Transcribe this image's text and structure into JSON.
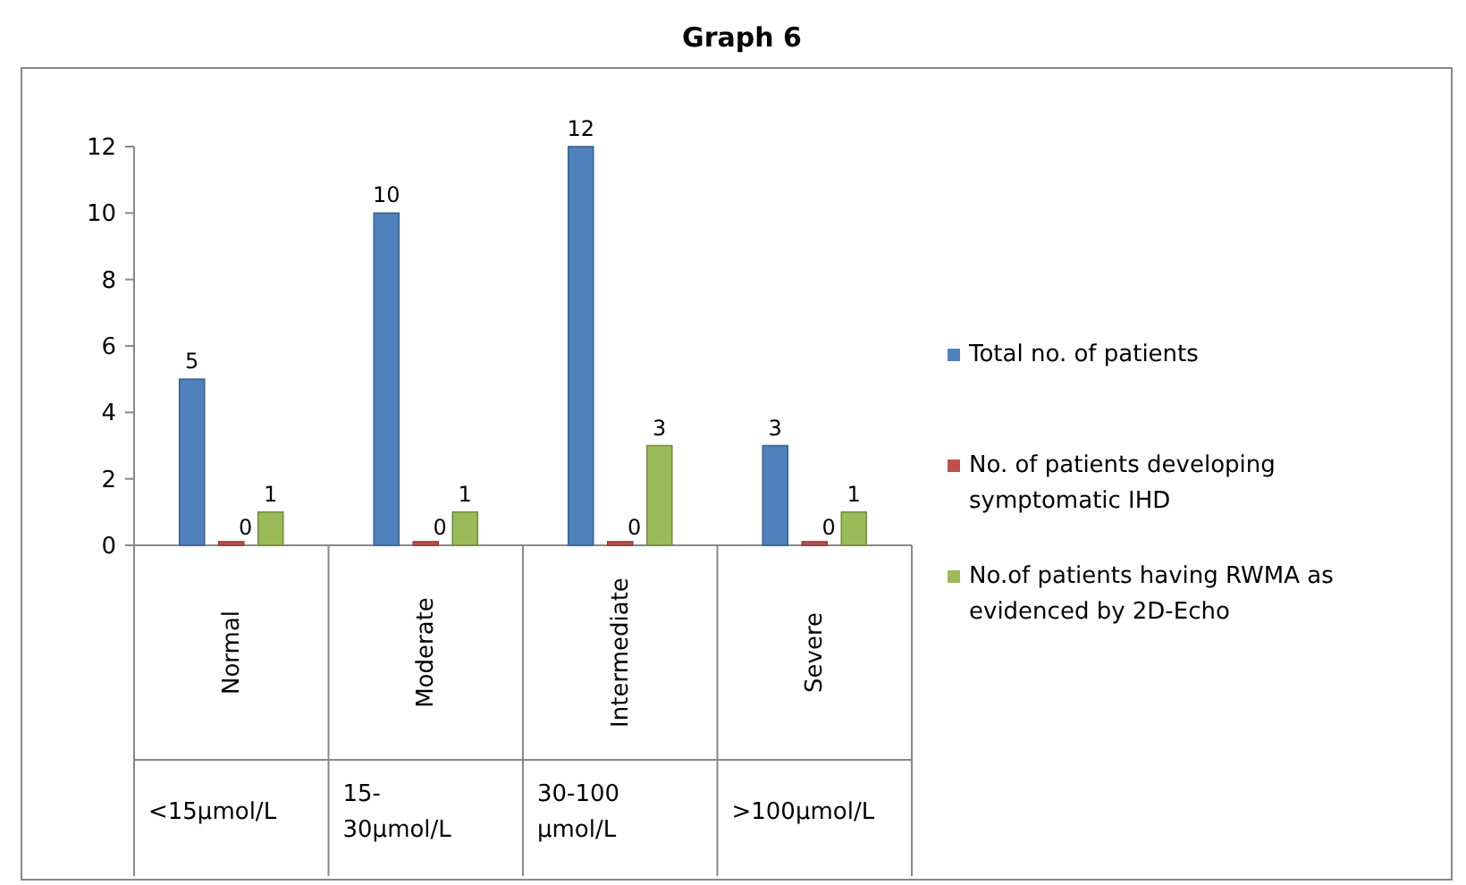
{
  "chart_data": {
    "type": "bar",
    "title": "Graph 6",
    "categories": [
      "Normal",
      "Moderate",
      "Intermediate",
      "Severe"
    ],
    "series": [
      {
        "name": "Total no. of patients",
        "color": "#4f81bd",
        "values": [
          5,
          10,
          12,
          3
        ]
      },
      {
        "name": "No. of patients developing symptomatic IHD",
        "color": "#c0504d",
        "values": [
          0,
          0,
          0,
          0
        ]
      },
      {
        "name": "No.of patients having RWMA as evidenced by 2D-Echo",
        "color": "#9bbb59",
        "values": [
          1,
          1,
          3,
          1
        ]
      }
    ],
    "annotations": [
      "<15µmol/L",
      "15-30µmol/L",
      "30-100 µmol/L",
      ">100µmol/L"
    ],
    "ylim": [
      0,
      12
    ],
    "yticks": [
      0,
      2,
      4,
      6,
      8,
      10,
      12
    ],
    "data_labels": true,
    "legend": "right",
    "grid": false
  }
}
